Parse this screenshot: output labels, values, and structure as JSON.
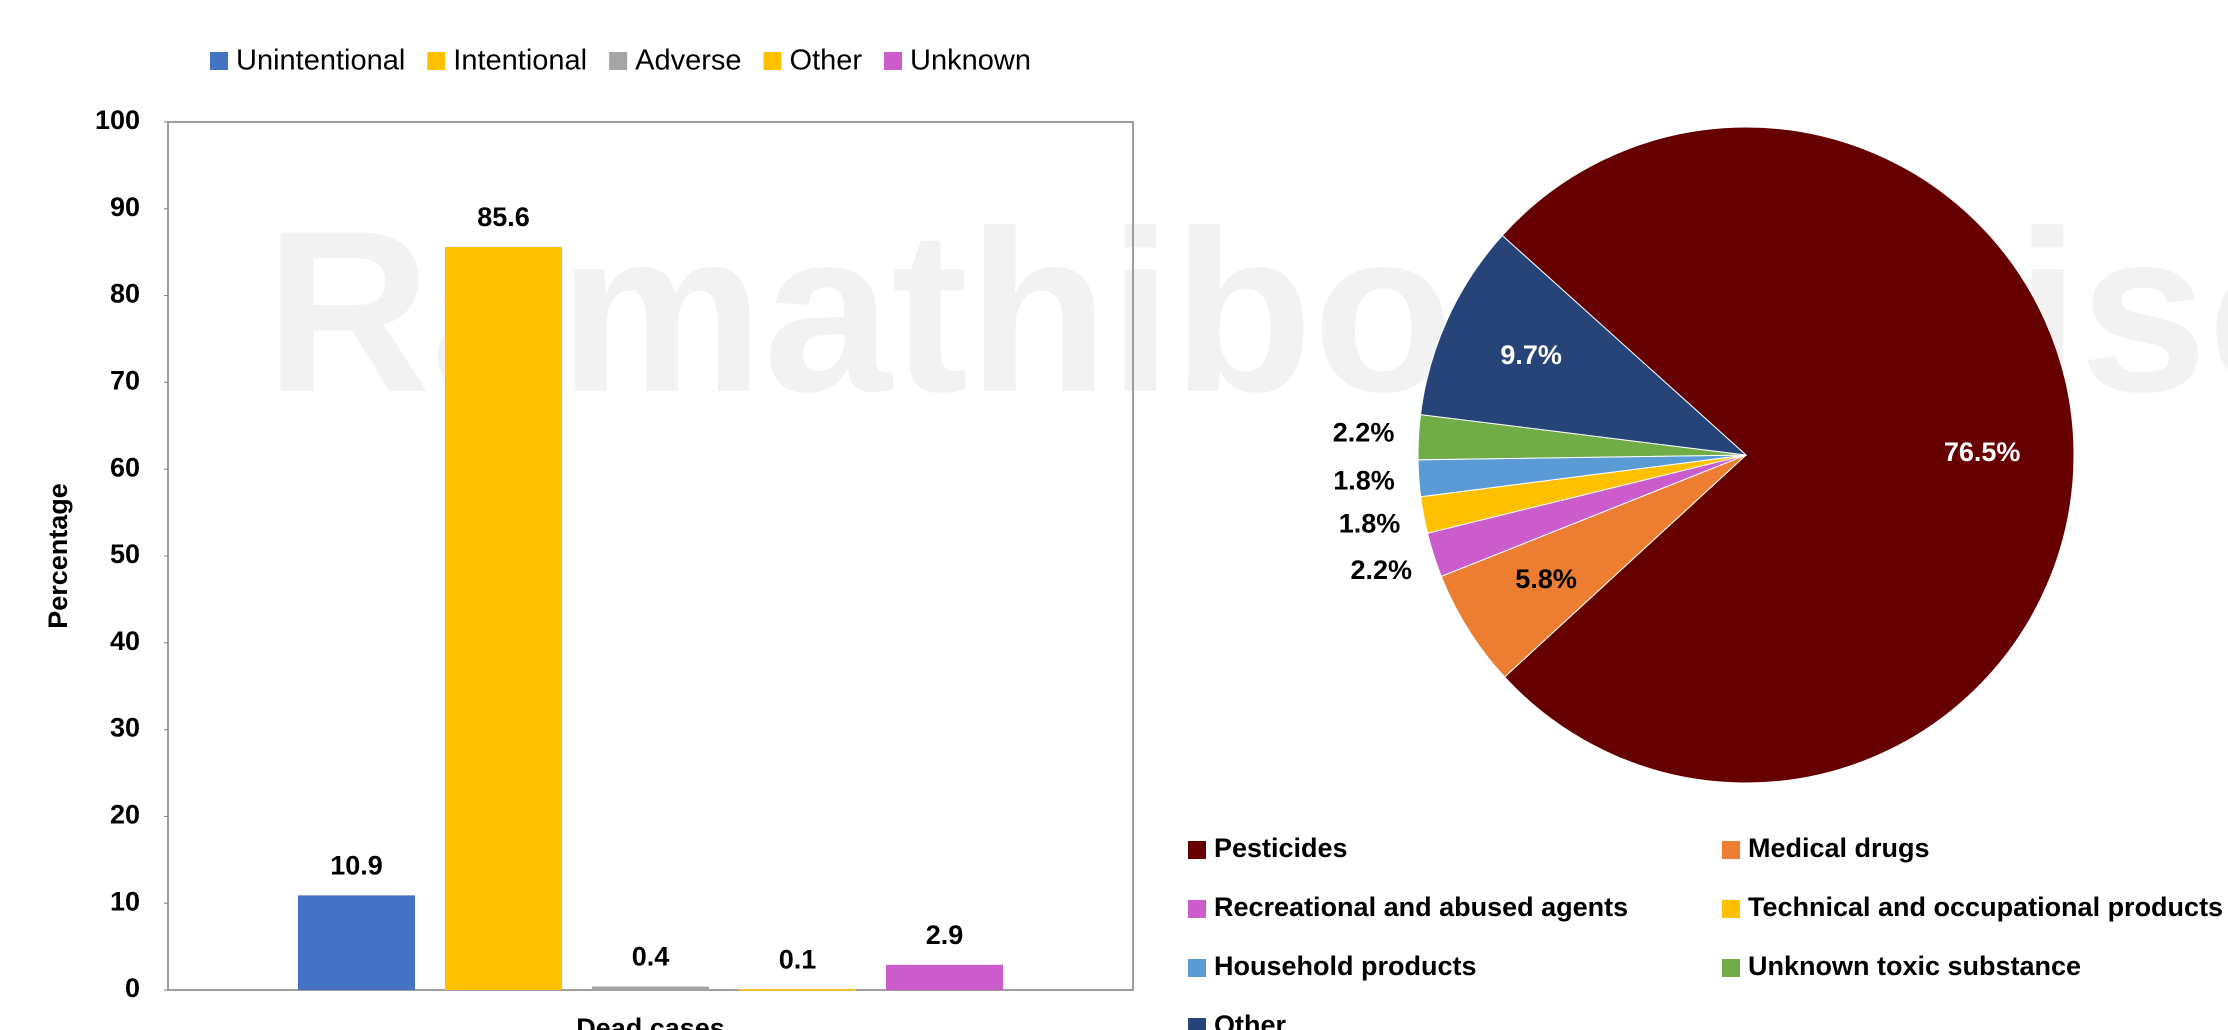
{
  "watermark": "Ramathibodi Poison",
  "chart_data": [
    {
      "type": "bar",
      "ylabel": "Percentage",
      "categories": [
        "Dead cases"
      ],
      "ylim": [
        0,
        100
      ],
      "yticks": [
        0,
        10,
        20,
        30,
        40,
        50,
        60,
        70,
        80,
        90,
        100
      ],
      "series": [
        {
          "name": "Unintentional",
          "color": "#4472c4",
          "values": [
            10.9
          ]
        },
        {
          "name": "Intentional",
          "color": "#ffc000",
          "values": [
            85.6
          ]
        },
        {
          "name": "Adverse",
          "color": "#a5a5a5",
          "values": [
            0.4
          ]
        },
        {
          "name": "Other",
          "color": "#ffc000",
          "values": [
            0.1
          ]
        },
        {
          "name": "Unknown",
          "color": "#cc5ccc",
          "values": [
            2.9
          ]
        }
      ]
    },
    {
      "type": "pie",
      "categories": [
        "Pesticides",
        "Medical drugs",
        "Recreational and abused agents",
        "Technical and occupational products",
        "Household products",
        "Unknown toxic substance",
        "Other"
      ],
      "values": [
        76.5,
        5.8,
        2.2,
        1.8,
        1.8,
        2.2,
        9.7
      ],
      "value_labels": [
        "76.5%",
        "5.8%",
        "2.2%",
        "1.8%",
        "1.8%",
        "2.2%",
        "9.7%"
      ],
      "colors": [
        "#660000",
        "#ed7d31",
        "#cc5ccc",
        "#ffc000",
        "#5b9bd5",
        "#70ad47",
        "#264478"
      ]
    }
  ]
}
